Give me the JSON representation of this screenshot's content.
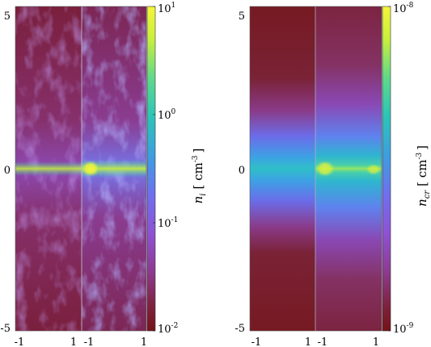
{
  "chart_data": [
    {
      "type": "heatmap",
      "title": "",
      "panels": 2,
      "x_ticks": [
        "-1",
        "1",
        "-1",
        "1"
      ],
      "y_ticks": [
        "5",
        "0",
        "-5"
      ],
      "colorbar": {
        "label_symbol": "n",
        "label_sub": "i",
        "label_unit_open": "[ cm",
        "label_unit_sup": "-3",
        "label_unit_close": "]",
        "scale": "log",
        "range": [
          0.01,
          10
        ],
        "ticks": [
          {
            "base": "10",
            "exp": "1",
            "value": 10
          },
          {
            "base": "10",
            "exp": "0",
            "value": 1
          },
          {
            "base": "10",
            "exp": "-1",
            "value": 0.1
          },
          {
            "base": "10",
            "exp": "-2",
            "value": 0.01
          }
        ],
        "colormap": "plasma-purple-to-yellow"
      }
    },
    {
      "type": "heatmap",
      "title": "",
      "panels": 2,
      "x_ticks": [
        "-1",
        "1",
        "-1",
        "1"
      ],
      "y_ticks": [
        "5",
        "0",
        "-5"
      ],
      "colorbar": {
        "label_symbol": "n",
        "label_sub": "cr",
        "label_unit_open": "[ cm",
        "label_unit_sup": "-3",
        "label_unit_close": "]",
        "scale": "log",
        "range": [
          1e-09,
          1e-08
        ],
        "ticks": [
          {
            "base": "10",
            "exp": "-8",
            "value": 1e-08
          },
          {
            "base": "10",
            "exp": "-9",
            "value": 1e-09
          }
        ],
        "colormap": "plasma-purple-to-yellow"
      }
    }
  ]
}
